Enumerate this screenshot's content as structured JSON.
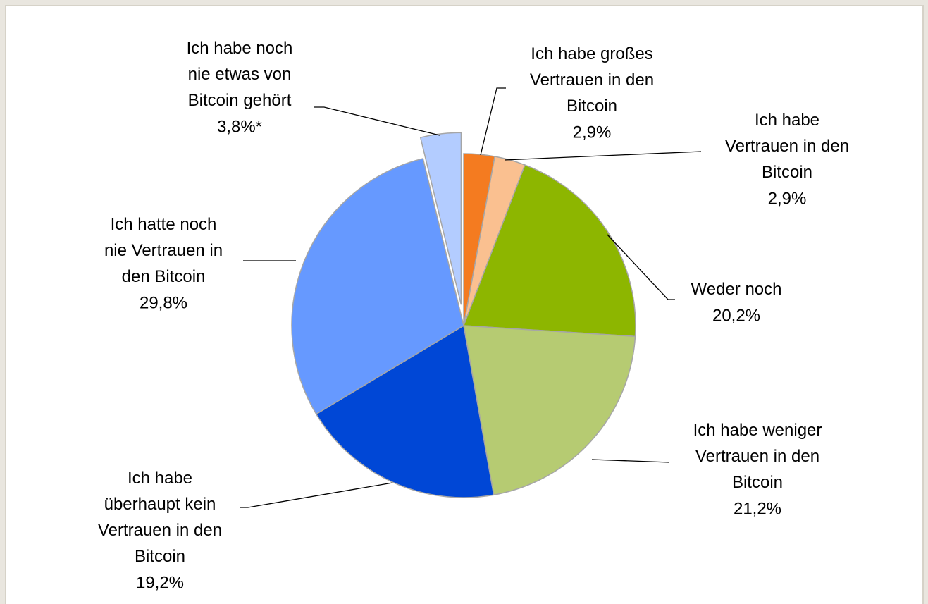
{
  "chart_data": {
    "type": "pie",
    "categories": [
      "Ich habe großes\nVertrauen in den\nBitcoin",
      "Ich habe\nVertrauen in den\nBitcoin",
      "Weder noch",
      "Ich habe weniger\nVertrauen in den\nBitcoin",
      "Ich habe\nüberhaupt kein\nVertrauen in den\nBitcoin",
      "Ich hatte noch\nnie Vertrauen in\nden Bitcoin",
      "Ich habe noch\nnie etwas von\nBitcoin gehört"
    ],
    "values": [
      2.9,
      2.9,
      20.2,
      21.2,
      19.2,
      29.8,
      3.8
    ],
    "value_labels": [
      "2,9%",
      "2,9%",
      "20,2%",
      "21,2%",
      "19,2%",
      "29,8%",
      "3,8%*"
    ],
    "colors": [
      "#f47b20",
      "#fac090",
      "#8db600",
      "#b6cb72",
      "#0047d6",
      "#6699ff",
      "#b3ccff"
    ],
    "explode": [
      0,
      0,
      0,
      0,
      0,
      0,
      1
    ]
  }
}
